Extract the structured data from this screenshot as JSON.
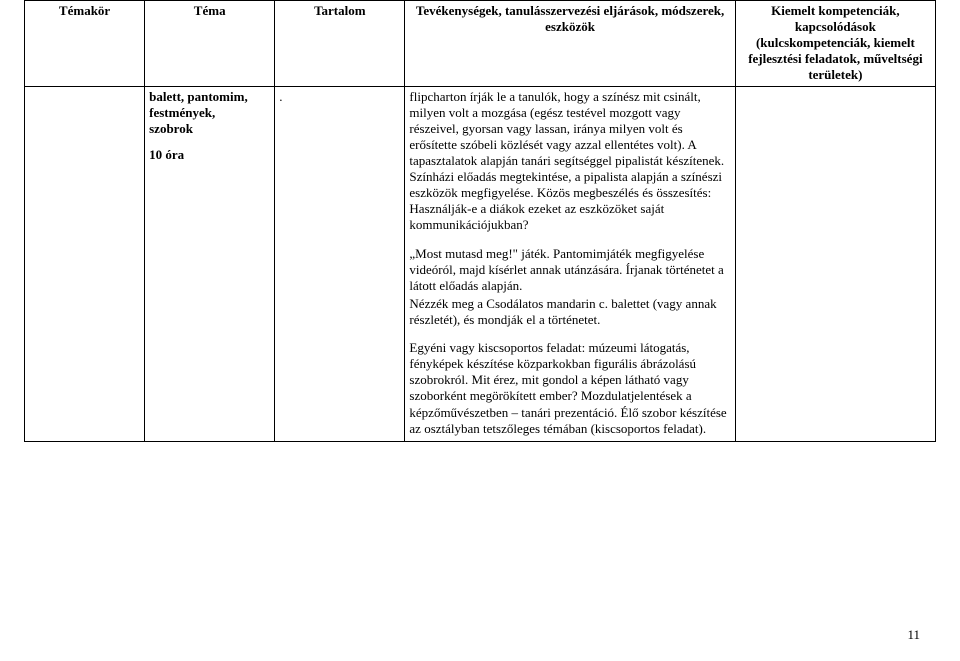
{
  "table": {
    "headers": {
      "col1": "Témakör",
      "col2": "Téma",
      "col3": "Tartalom",
      "col4": "Tevékenységek, tanulásszervezési eljárások, módszerek, eszközök",
      "col5": "Kiemelt kompetenciák, kapcsolódások (kulcskompetenciák, kiemelt fejlesztési feladatok, műveltségi területek)"
    },
    "row": {
      "col1": "",
      "col2_bold1": "balett, pantomim, festmények,",
      "col2_bold2": "szobrok",
      "col2_bold3": "10 óra",
      "col3": ".",
      "col4_p1": "flipcharton írják le a tanulók, hogy a színész mit csinált, milyen volt a mozgása (egész testével mozgott vagy részeivel, gyorsan vagy lassan, iránya milyen volt és erősítette szóbeli közlését vagy azzal ellentétes volt). A tapasztalatok alapján tanári segítséggel pipalistát készítenek. Színházi előadás megtekintése, a pipalista alapján a színészi eszközök megfigyelése. Közös megbeszélés és összesítés: Használják-e a diákok ezeket az eszközöket saját kommunikációjukban?",
      "col4_p2": "„Most mutasd meg!\" játék. Pantomimjáték megfigyelése videóról, majd kísérlet annak utánzására. Írjanak történetet a látott előadás alapján.",
      "col4_p3": "Nézzék meg a Csodálatos mandarin c. balettet (vagy annak részletét), és mondják el a történetet.",
      "col4_p4": "Egyéni vagy kiscsoportos feladat: múzeumi látogatás, fényképek készítése közparkokban figurális ábrázolású szobrokról. Mit érez, mit gondol a képen látható vagy szoborként megörökített ember? Mozdulatjelentések a képzőművészetben – tanári prezentáció. Élő szobor készítése az osztályban tetszőleges témában (kiscsoportos feladat).",
      "col5": ""
    }
  },
  "pageNumber": "11"
}
